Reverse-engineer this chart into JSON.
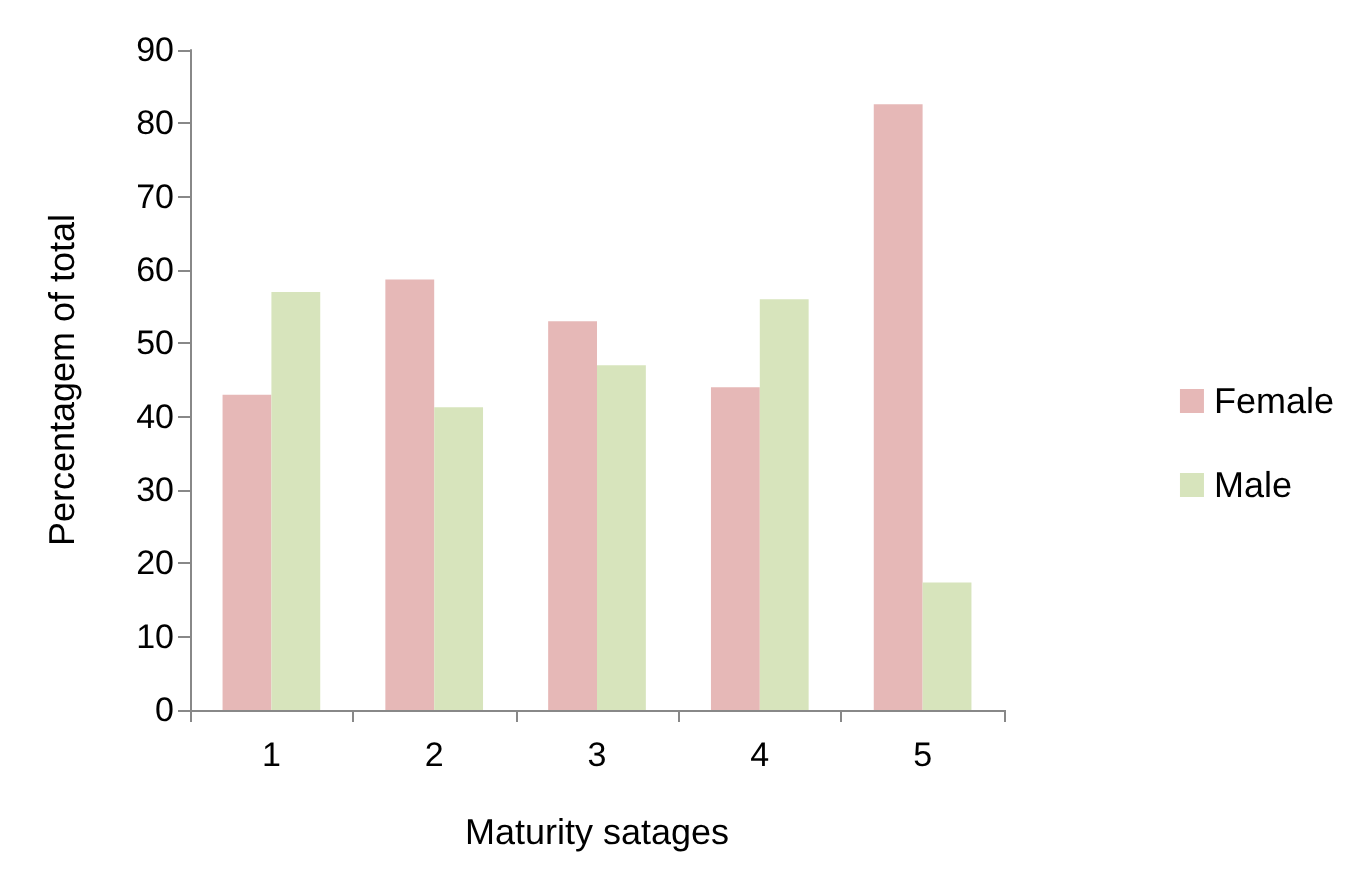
{
  "chart_data": {
    "type": "bar",
    "xlabel": "Maturity satages",
    "ylabel": "Percentagem of total",
    "categories": [
      "1",
      "2",
      "3",
      "4",
      "5"
    ],
    "series": [
      {
        "name": "Female",
        "color": "#e6b8b7",
        "values": [
          43,
          58.7,
          53,
          44,
          82.6
        ]
      },
      {
        "name": "Male",
        "color": "#d7e4bc",
        "values": [
          57,
          41.3,
          47,
          56,
          17.4
        ]
      }
    ],
    "ylim": [
      0,
      90
    ],
    "yticks": [
      0,
      10,
      20,
      30,
      40,
      50,
      60,
      70,
      80,
      90
    ],
    "grid": false,
    "legend": "right"
  }
}
